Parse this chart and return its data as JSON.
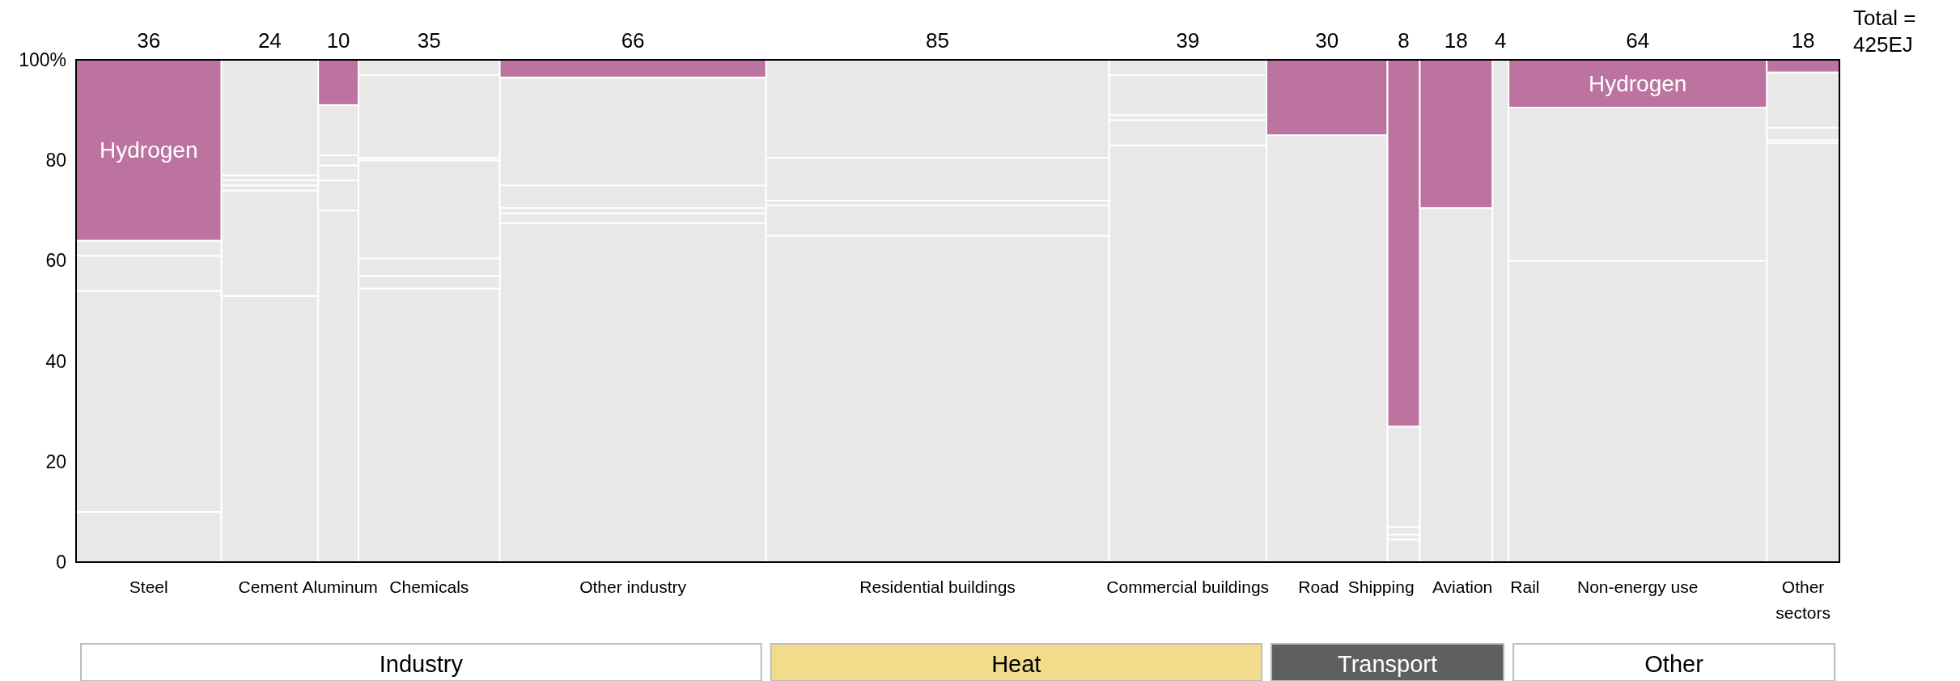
{
  "chart_data": {
    "type": "bar",
    "stacked": true,
    "categories": [
      "Steel",
      "Cement",
      "Aluminum",
      "Chemicals",
      "Other industry",
      "Residential buildings",
      "Commercial buildings",
      "Road",
      "Shipping",
      "Aviation",
      "Rail",
      "Non-energy use",
      "Other sectors"
    ],
    "series": [
      {
        "color": "#e8e8e8",
        "values": [
          10,
          53,
          70,
          54.5,
          67.5,
          65,
          83,
          85,
          4.5,
          70.5,
          100,
          60,
          83.5
        ]
      },
      {
        "color": "#e8e8e8",
        "values": [
          44,
          21,
          6,
          2.5,
          2,
          6,
          5,
          null,
          1,
          null,
          null,
          30.5,
          0.5
        ]
      },
      {
        "color": "#e8e8e8",
        "values": [
          7,
          1,
          3,
          3.5,
          1,
          1,
          1,
          null,
          1.5,
          null,
          null,
          null,
          2.5
        ]
      },
      {
        "color": "#e8e8e8",
        "values": [
          3,
          1,
          2,
          19.5,
          4.5,
          8.5,
          8,
          null,
          20,
          null,
          null,
          null,
          11
        ]
      },
      {
        "color": "#e8e8e8",
        "values": [
          null,
          1,
          10,
          0.5,
          21.5,
          19.5,
          3,
          null,
          null,
          null,
          null,
          null,
          null
        ]
      },
      {
        "color": "#e8e8e8",
        "values": [
          null,
          23,
          null,
          16.5,
          null,
          null,
          null,
          null,
          null,
          null,
          null,
          null,
          null
        ]
      },
      {
        "color": "#e8e8e8",
        "values": [
          null,
          null,
          null,
          3,
          null,
          null,
          null,
          null,
          null,
          null,
          null,
          null,
          null
        ]
      },
      {
        "name": "Hydrogen",
        "color": "#bc73a0",
        "values": [
          36,
          null,
          9,
          null,
          3.5,
          null,
          null,
          15,
          73,
          29.5,
          null,
          9.5,
          2.5
        ]
      }
    ],
    "ylim": [
      0,
      100
    ],
    "yticks": [
      0,
      20,
      40,
      60,
      80,
      {
        "value": 100,
        "label": "100%"
      }
    ],
    "annotations": [
      "Total = 425EJ",
      "Industry",
      "Heat",
      "Transport",
      "Other",
      {
        "text": "36",
        "x": "Steel",
        "y": 100
      },
      {
        "text": "24",
        "x": "Cement",
        "y": 100
      },
      {
        "text": "10",
        "x": "Aluminum",
        "y": 100
      },
      {
        "text": "35",
        "x": "Chemicals",
        "y": 100
      },
      {
        "text": "66",
        "x": "Other industry",
        "y": 100
      },
      {
        "text": "85",
        "x": "Residential buildings",
        "y": 100
      },
      {
        "text": "39",
        "x": "Commercial buildings",
        "y": 100
      },
      {
        "text": "30",
        "x": "Road",
        "y": 100
      },
      {
        "text": "8",
        "x": "Shipping",
        "y": 100
      },
      {
        "text": "18",
        "x": "Aviation",
        "y": 100
      },
      {
        "text": "4",
        "x": "Rail",
        "y": 100
      },
      {
        "text": "64",
        "x": "Non-energy use",
        "y": 100
      },
      {
        "text": "18",
        "x": "Other sectors",
        "y": 100
      }
    ]
  }
}
